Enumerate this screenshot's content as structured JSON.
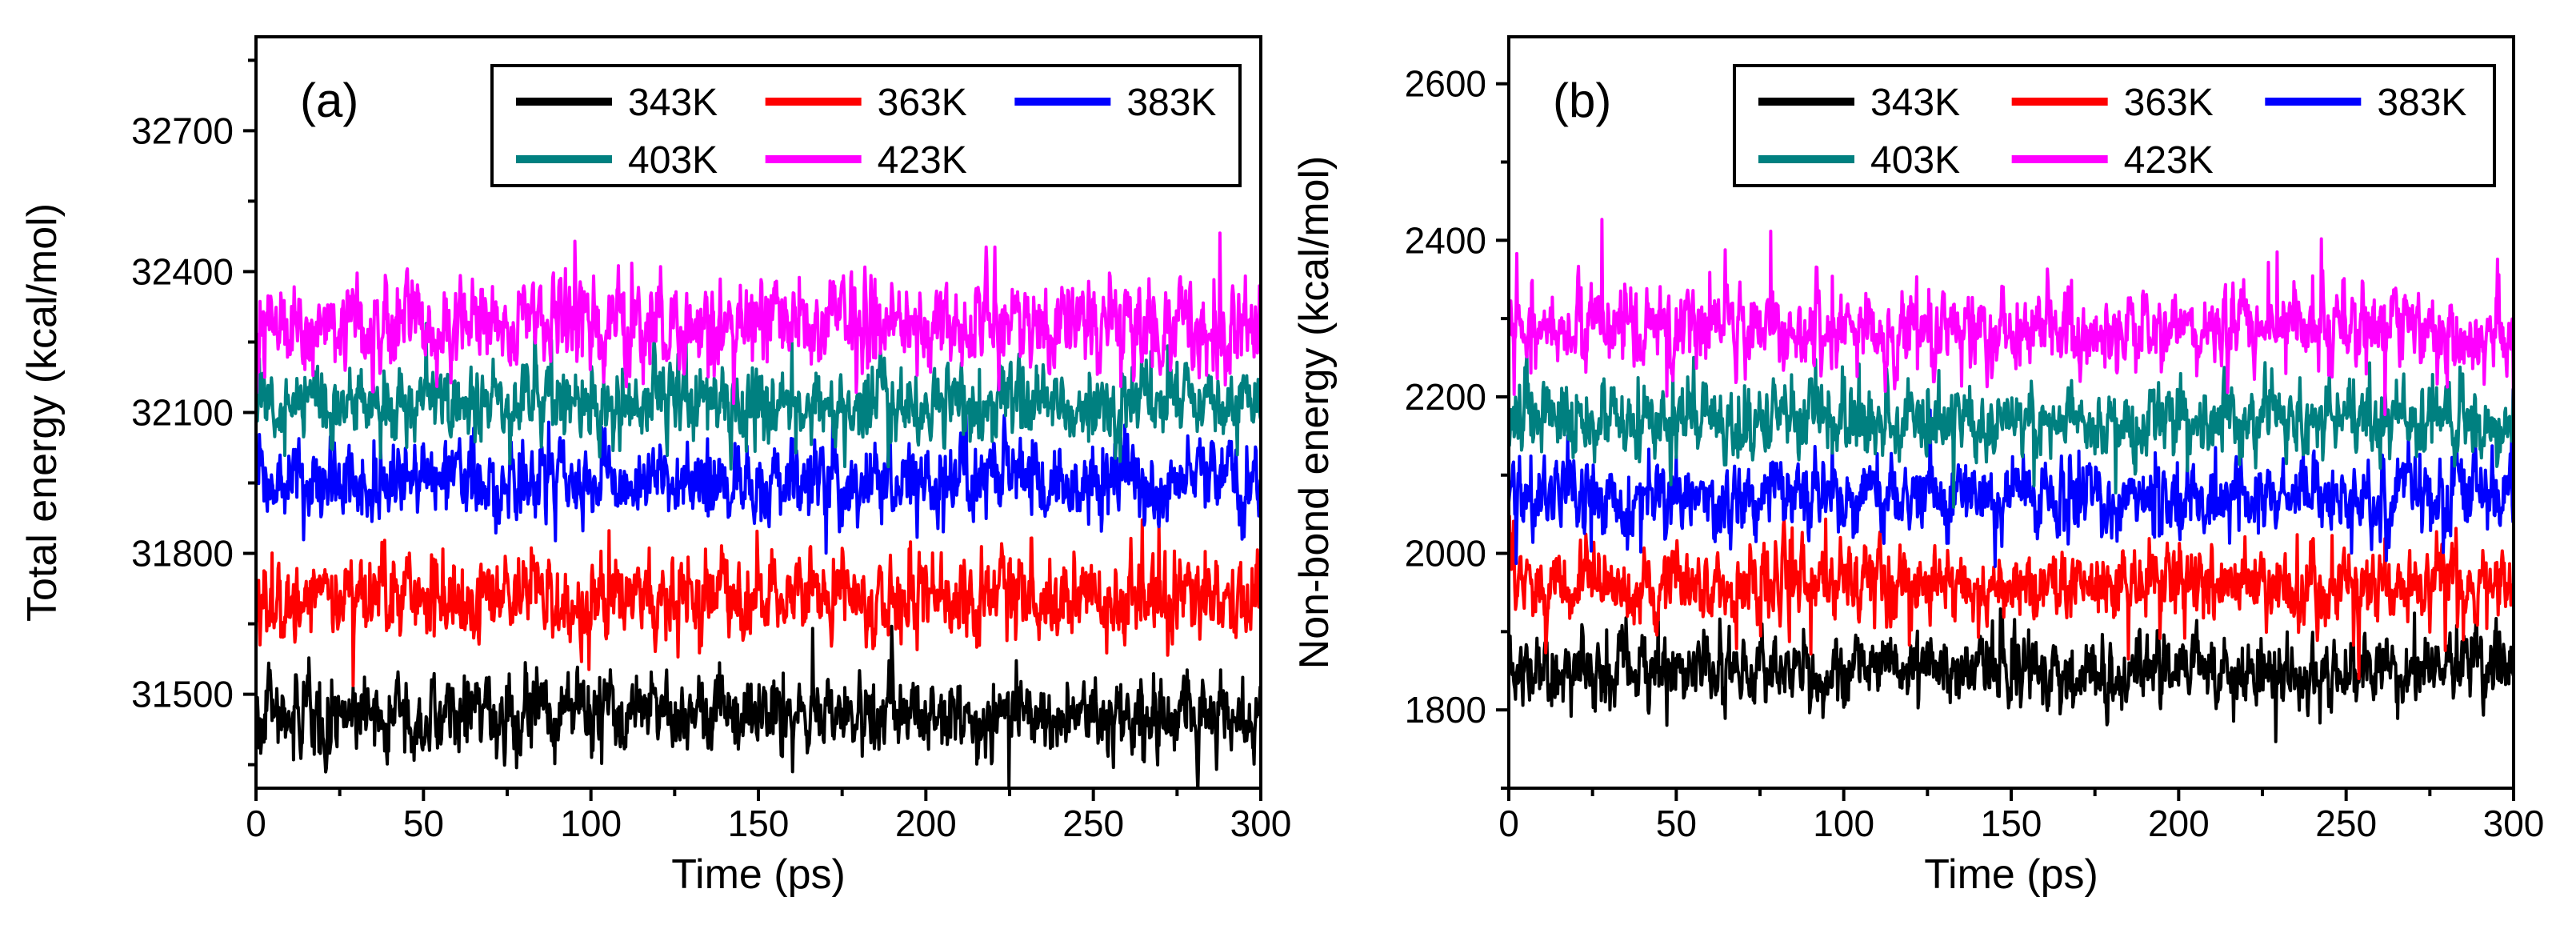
{
  "chart_data": [
    {
      "type": "line",
      "panel_label": "(a)",
      "xlabel": "Time (ps)",
      "ylabel": "Total energy (kcal/mol)",
      "xlim": [
        0,
        300
      ],
      "ylim": [
        31300,
        32900
      ],
      "x_ticks": [
        0,
        50,
        100,
        150,
        200,
        250,
        300
      ],
      "y_ticks": [
        31500,
        31800,
        32100,
        32400,
        32700
      ],
      "grid": false,
      "legend": {
        "placement": "top-right",
        "columns": 3
      },
      "series": [
        {
          "name": "343K",
          "color": "#000000",
          "mean": 31455,
          "amplitude": 55,
          "spike": 95
        },
        {
          "name": "363K",
          "color": "#ff0000",
          "mean": 31705,
          "amplitude": 60,
          "spike": 100
        },
        {
          "name": "383K",
          "color": "#0000ff",
          "mean": 31950,
          "amplitude": 55,
          "spike": 95
        },
        {
          "name": "403K",
          "color": "#008080",
          "mean": 32120,
          "amplitude": 55,
          "spike": 95
        },
        {
          "name": "423K",
          "color": "#ff00ff",
          "mean": 32290,
          "amplitude": 65,
          "spike": 130
        }
      ]
    },
    {
      "type": "line",
      "panel_label": "(b)",
      "xlabel": "Time (ps)",
      "ylabel": "Non-bond energy (kcal/mol)",
      "xlim": [
        0,
        300
      ],
      "ylim": [
        1700,
        2660
      ],
      "x_ticks": [
        0,
        50,
        100,
        150,
        200,
        250,
        300
      ],
      "y_ticks": [
        1800,
        2000,
        2200,
        2400,
        2600
      ],
      "grid": false,
      "legend": {
        "placement": "top-right",
        "columns": 3
      },
      "series": [
        {
          "name": "343K",
          "color": "#000000",
          "mean": 1850,
          "amplitude": 30,
          "spike": 55
        },
        {
          "name": "363K",
          "color": "#ff0000",
          "mean": 1960,
          "amplitude": 32,
          "spike": 65
        },
        {
          "name": "383K",
          "color": "#0000ff",
          "mean": 2075,
          "amplitude": 32,
          "spike": 60
        },
        {
          "name": "403K",
          "color": "#008080",
          "mean": 2170,
          "amplitude": 32,
          "spike": 65
        },
        {
          "name": "423K",
          "color": "#ff00ff",
          "mean": 2285,
          "amplitude": 35,
          "spike": 90
        }
      ]
    }
  ]
}
